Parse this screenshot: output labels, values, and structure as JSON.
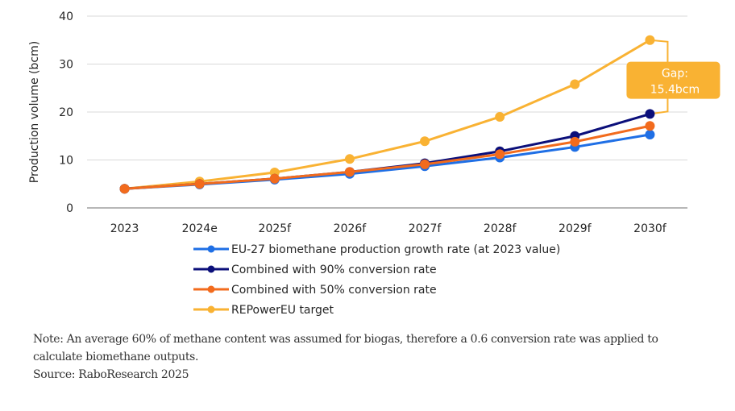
{
  "chart_data": {
    "type": "line",
    "title": "",
    "xlabel": "",
    "ylabel": "Production volume (bcm)",
    "ylim": [
      0,
      40
    ],
    "yticks": [
      0,
      10,
      20,
      30,
      40
    ],
    "grid": true,
    "legend_position": "bottom",
    "categories": [
      "2023",
      "2024e",
      "2025f",
      "2026f",
      "2027f",
      "2028f",
      "2029f",
      "2030f"
    ],
    "series": [
      {
        "name": "EU-27 biomethane production growth rate (at 2023 value)",
        "color": "#1f6fe5",
        "values": [
          4.0,
          4.9,
          5.9,
          7.1,
          8.7,
          10.5,
          12.7,
          15.3
        ]
      },
      {
        "name": "Combined with 90% conversion rate",
        "color": "#0b0f7a",
        "values": [
          4.0,
          5.0,
          6.1,
          7.5,
          9.3,
          11.8,
          15.0,
          19.6
        ]
      },
      {
        "name": "Combined with 50% conversion rate",
        "color": "#f26b1d",
        "values": [
          4.0,
          5.0,
          6.1,
          7.5,
          9.1,
          11.2,
          13.8,
          17.1
        ]
      },
      {
        "name": "REPowerEU target",
        "color": "#f9b233",
        "values": [
          4.0,
          5.5,
          7.4,
          10.2,
          13.9,
          19.0,
          25.8,
          35.0
        ]
      }
    ],
    "annotations": [
      {
        "label_line1": "Gap:",
        "label_line2": "15.4bcm",
        "category": "2030f",
        "from_value": 19.6,
        "to_value": 35.0,
        "color": "#f9b233"
      }
    ]
  },
  "footer": {
    "note_line1": "Note: An average 60% of methane content was assumed for biogas, therefore a 0.6 conversion rate was applied to",
    "note_line2": "calculate biomethane outputs.",
    "source": "Source: RaboResearch 2025"
  }
}
